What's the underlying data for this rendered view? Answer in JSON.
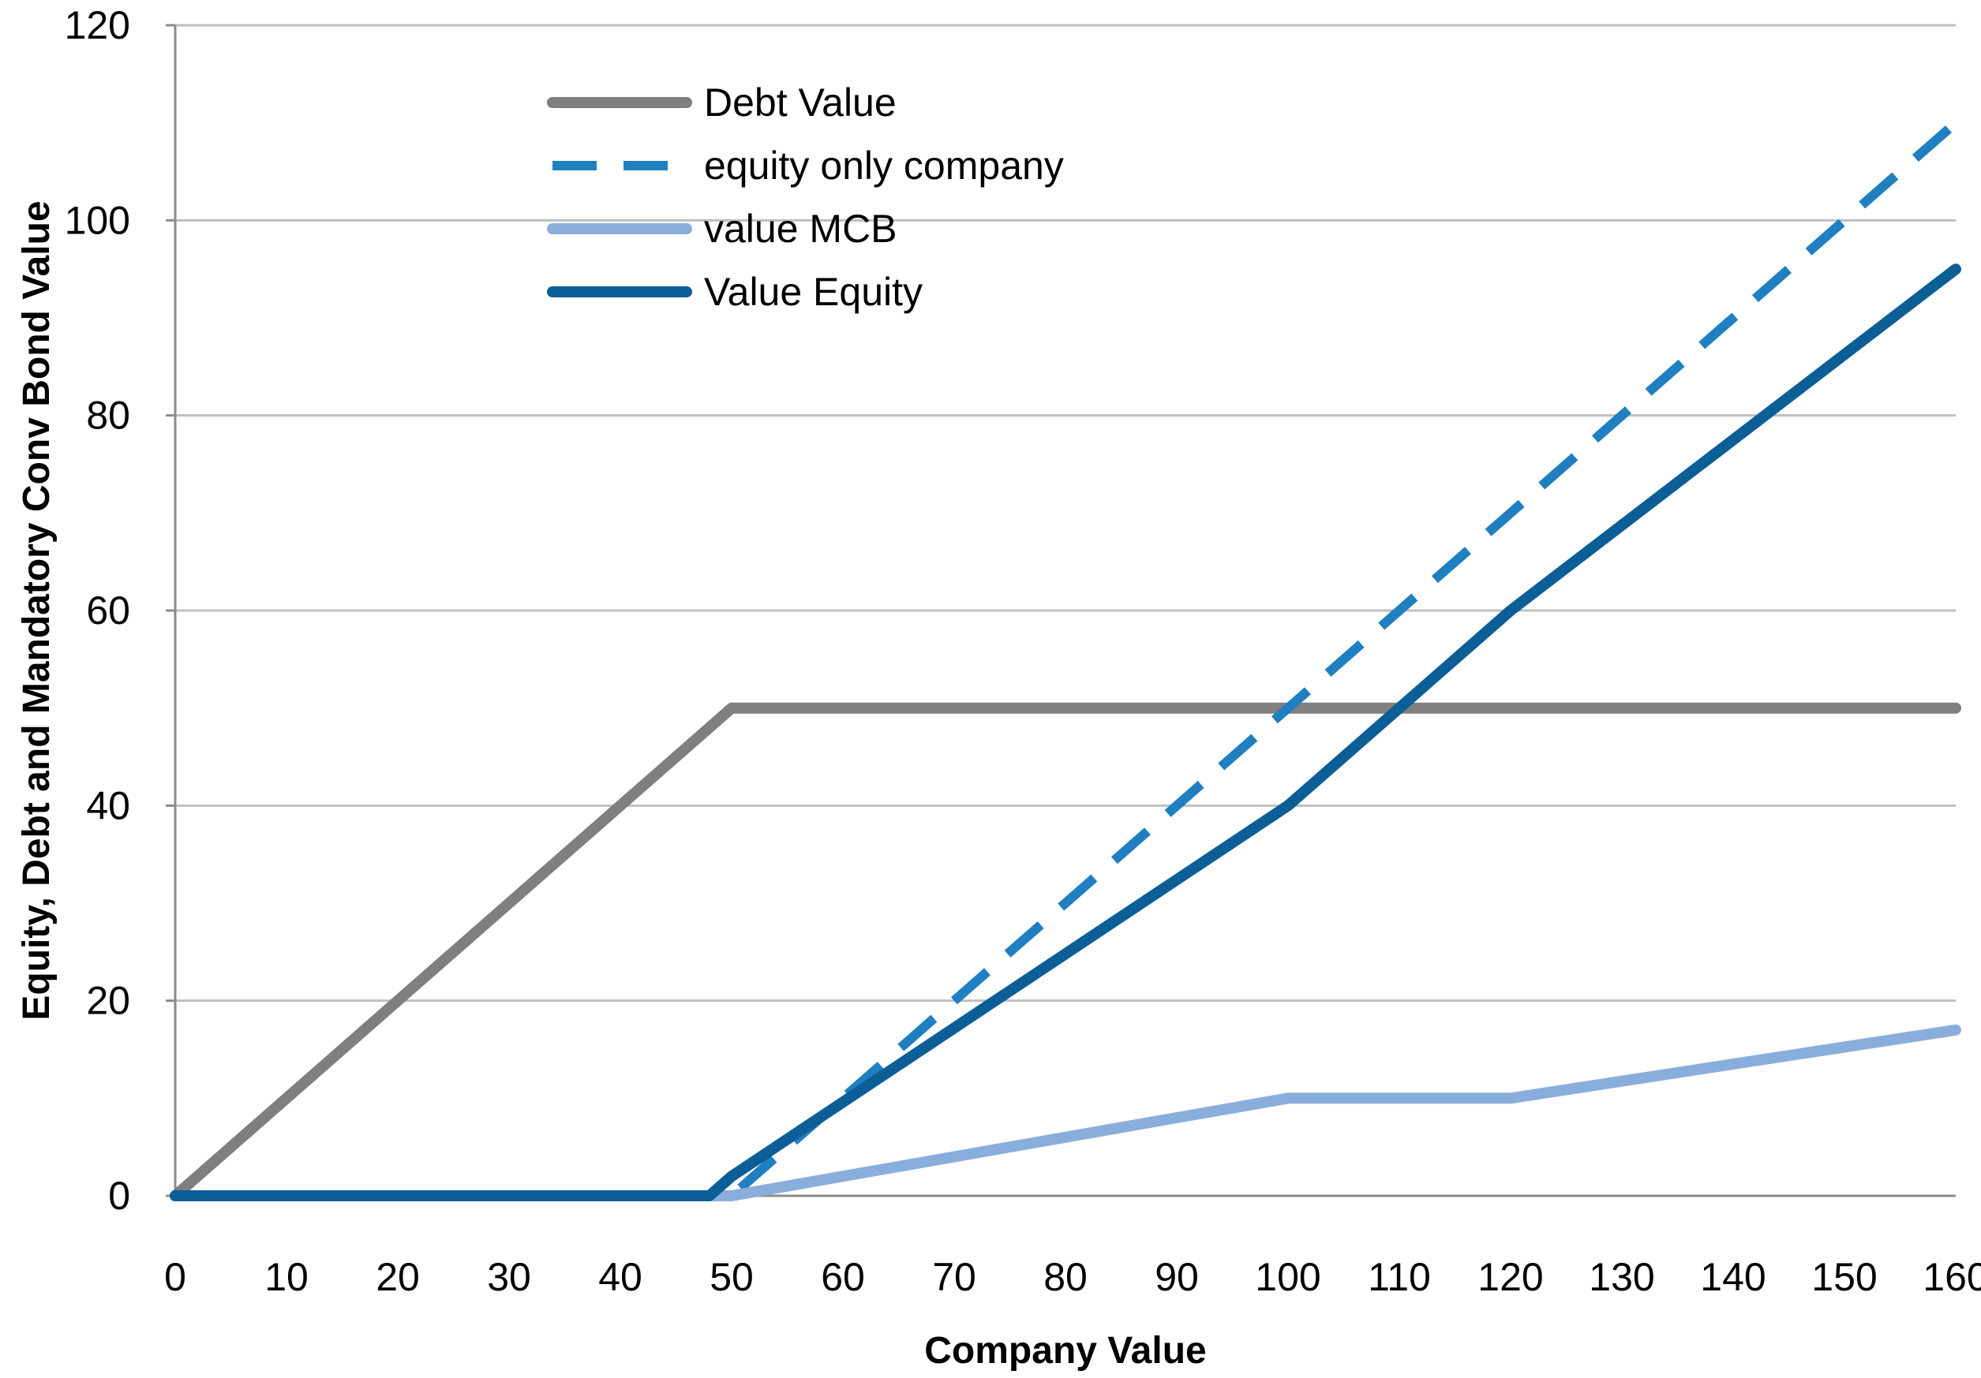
{
  "chart_data": {
    "type": "line",
    "title": "",
    "xlabel": "Company Value",
    "ylabel": "Equity, Debt and Mandatory  Conv Bond Value",
    "xlim": [
      0,
      160
    ],
    "ylim": [
      0,
      120
    ],
    "xticks": [
      0,
      10,
      20,
      30,
      40,
      50,
      60,
      70,
      80,
      90,
      100,
      110,
      120,
      130,
      140,
      150,
      160
    ],
    "yticks": [
      0,
      20,
      40,
      60,
      80,
      100,
      120
    ],
    "grid": "horizontal",
    "legend_position": "top-left",
    "series": [
      {
        "name": "Debt Value",
        "color": "#7f7f7f",
        "style": "solid",
        "x": [
          0,
          50,
          160
        ],
        "y": [
          0,
          50,
          50
        ]
      },
      {
        "name": "equity only company",
        "color": "#1f7fc0",
        "style": "dashed",
        "x": [
          0,
          50,
          160
        ],
        "y": [
          0,
          0,
          110
        ]
      },
      {
        "name": "value MCB",
        "color": "#8aaedb",
        "style": "solid",
        "x": [
          0,
          50,
          100,
          120,
          160
        ],
        "y": [
          0,
          0,
          10,
          10,
          17
        ]
      },
      {
        "name": "Value Equity",
        "color": "#0b5e96",
        "style": "solid",
        "x": [
          0,
          48,
          50,
          100,
          120,
          160
        ],
        "y": [
          0,
          0,
          2,
          40,
          60,
          95
        ]
      }
    ]
  }
}
